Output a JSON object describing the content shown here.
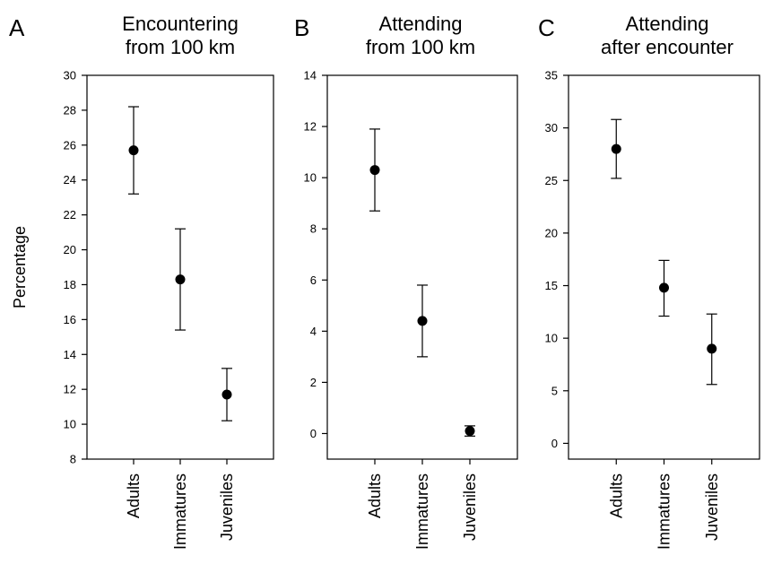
{
  "figure": {
    "ylabel": "Percentage"
  },
  "chart_data": [
    {
      "type": "scatter",
      "letter": "A",
      "title_lines": [
        "Encountering",
        "from 100 km"
      ],
      "categories": [
        "Adults",
        "Immatures",
        "Juveniles"
      ],
      "values": [
        25.7,
        18.3,
        11.7
      ],
      "error_low": [
        23.2,
        15.4,
        10.2
      ],
      "error_high": [
        28.2,
        21.2,
        13.2
      ],
      "ylim": [
        8,
        30
      ],
      "yticks": [
        8,
        10,
        12,
        14,
        16,
        18,
        20,
        22,
        24,
        26,
        28,
        30
      ],
      "ylabel": "Percentage",
      "grid": false
    },
    {
      "type": "scatter",
      "letter": "B",
      "title_lines": [
        "Attending",
        "from 100 km"
      ],
      "categories": [
        "Adults",
        "Immatures",
        "Juveniles"
      ],
      "values": [
        10.3,
        4.4,
        0.1
      ],
      "error_low": [
        8.7,
        3.0,
        -0.1
      ],
      "error_high": [
        11.9,
        5.8,
        0.3
      ],
      "ylim": [
        -1,
        14
      ],
      "yticks": [
        0,
        2,
        4,
        6,
        8,
        10,
        12,
        14
      ],
      "grid": false
    },
    {
      "type": "scatter",
      "letter": "C",
      "title_lines": [
        "Attending",
        "after encounter"
      ],
      "categories": [
        "Adults",
        "Immatures",
        "Juveniles"
      ],
      "values": [
        28.0,
        14.8,
        9.0
      ],
      "error_low": [
        25.2,
        12.1,
        5.6
      ],
      "error_high": [
        30.8,
        17.4,
        12.3
      ],
      "ylim": [
        -1.5,
        35
      ],
      "yticks": [
        0,
        5,
        10,
        15,
        20,
        25,
        30,
        35
      ],
      "grid": false
    }
  ]
}
